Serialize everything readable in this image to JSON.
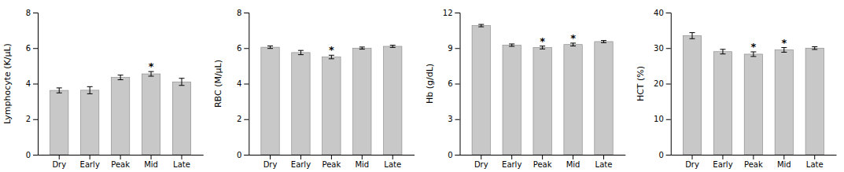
{
  "chart_data": [
    {
      "type": "bar",
      "ylabel": "Lymphocyte (K/μL)",
      "ylim": [
        0,
        8
      ],
      "yticks": [
        0,
        2,
        4,
        6,
        8
      ],
      "categories": [
        "Dry",
        "Early",
        "Peak",
        "Mid",
        "Late"
      ],
      "values": [
        3.62,
        3.63,
        4.35,
        4.55,
        4.1
      ],
      "errors": [
        0.14,
        0.2,
        0.13,
        0.13,
        0.2
      ],
      "annotations": [
        {
          "x": "Mid",
          "text": "*"
        }
      ],
      "color": "#c8c8c8"
    },
    {
      "type": "bar",
      "ylabel": "RBC (M/μL)",
      "ylim": [
        0,
        8
      ],
      "yticks": [
        0,
        2,
        4,
        6,
        8
      ],
      "categories": [
        "Dry",
        "Early",
        "Peak",
        "Mid",
        "Late"
      ],
      "values": [
        6.05,
        5.75,
        5.5,
        6.0,
        6.1
      ],
      "errors": [
        0.07,
        0.12,
        0.1,
        0.06,
        0.06
      ],
      "annotations": [
        {
          "x": "Peak",
          "text": "*"
        }
      ],
      "color": "#c8c8c8"
    },
    {
      "type": "bar",
      "ylabel": "Hb (g/dL)",
      "ylim": [
        0,
        12
      ],
      "yticks": [
        0,
        3,
        6,
        9,
        12
      ],
      "categories": [
        "Dry",
        "Early",
        "Peak",
        "Mid",
        "Late"
      ],
      "values": [
        10.9,
        9.25,
        9.05,
        9.3,
        9.55
      ],
      "errors": [
        0.1,
        0.1,
        0.12,
        0.12,
        0.09
      ],
      "annotations": [
        {
          "x": "Peak",
          "text": "*"
        },
        {
          "x": "Mid",
          "text": "*"
        }
      ],
      "color": "#c8c8c8"
    },
    {
      "type": "bar",
      "ylabel": "HCT (%)",
      "ylim": [
        0,
        40
      ],
      "yticks": [
        0,
        10,
        20,
        30,
        40
      ],
      "categories": [
        "Dry",
        "Early",
        "Peak",
        "Mid",
        "Late"
      ],
      "values": [
        33.5,
        29.0,
        28.3,
        29.5,
        30.0
      ],
      "errors": [
        0.85,
        0.65,
        0.65,
        0.65,
        0.38
      ],
      "annotations": [
        {
          "x": "Peak",
          "text": "*"
        },
        {
          "x": "Mid",
          "text": "*"
        }
      ],
      "color": "#c8c8c8"
    }
  ]
}
